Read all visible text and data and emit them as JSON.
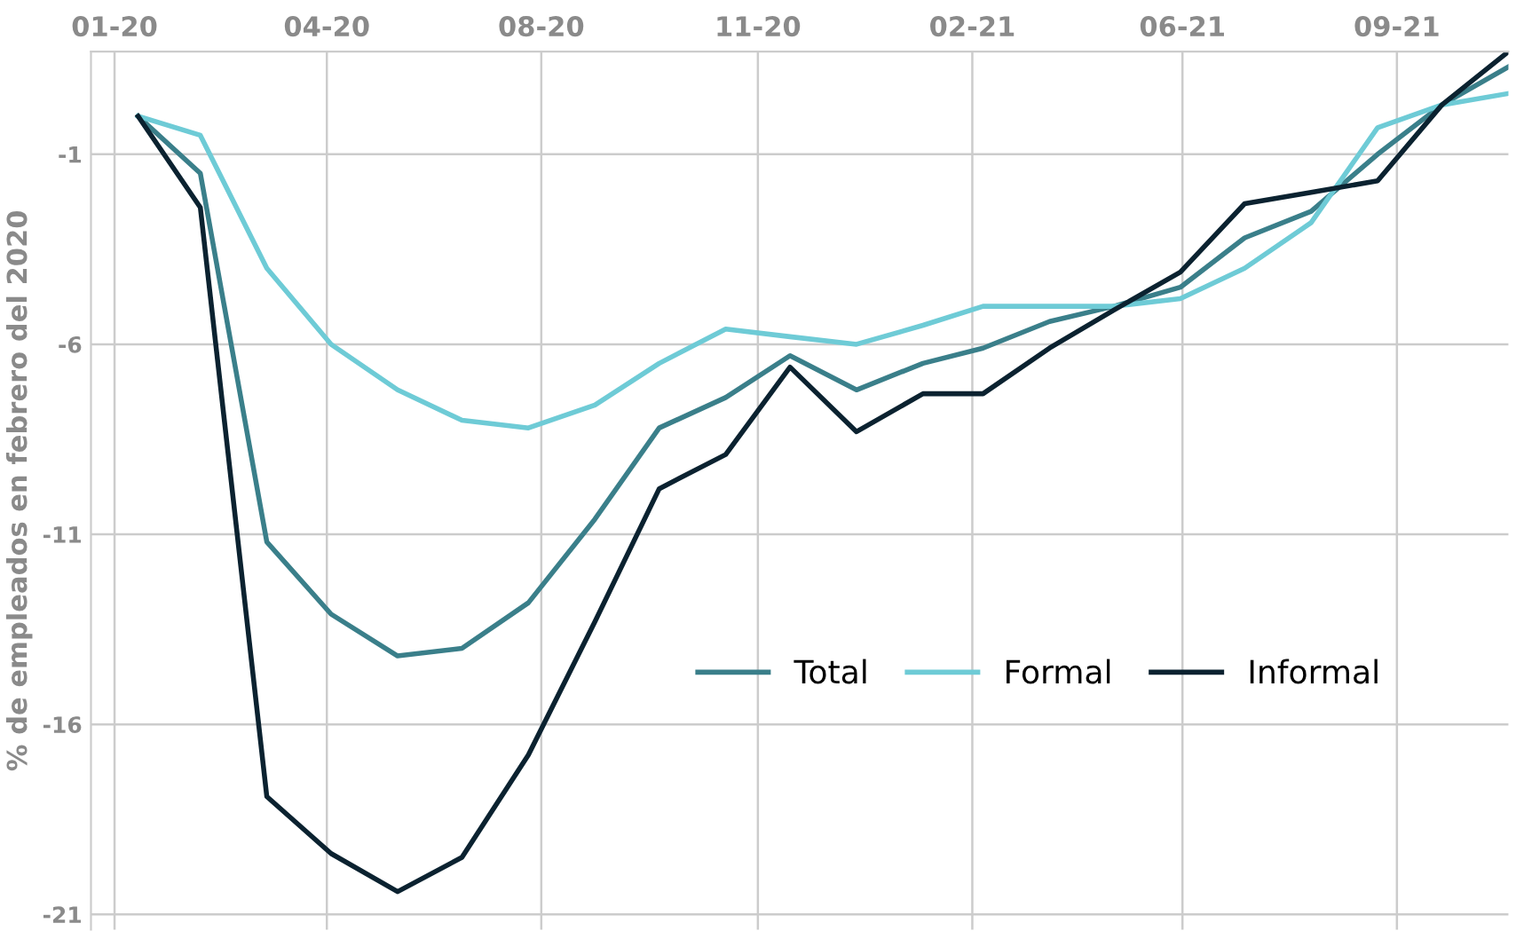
{
  "chart_data": {
    "type": "line",
    "ylabel": "% de empleados en febrero del 2020",
    "x": [
      "2020-02",
      "2020-03",
      "2020-04",
      "2020-05",
      "2020-06",
      "2020-07",
      "2020-08",
      "2020-09",
      "2020-10",
      "2020-11",
      "2020-12",
      "2021-01",
      "2021-02",
      "2021-03",
      "2021-04",
      "2021-05",
      "2021-06",
      "2021-07",
      "2021-08",
      "2021-09",
      "2021-10",
      "2021-11"
    ],
    "series": [
      {
        "name": "Total",
        "color": "#3a7f8a",
        "values": [
          0,
          -1.5,
          -11.2,
          -13.1,
          -14.2,
          -14.0,
          -12.8,
          -10.6,
          -8.2,
          -7.4,
          -6.3,
          -7.2,
          -6.5,
          -6.1,
          -5.4,
          -5.0,
          -4.5,
          -3.2,
          -2.5,
          -1.0,
          0.3,
          1.3
        ]
      },
      {
        "name": "Formal",
        "color": "#6ecbd6",
        "values": [
          0,
          -0.5,
          -4.0,
          -6.0,
          -7.2,
          -8.0,
          -8.2,
          -7.6,
          -6.5,
          -5.6,
          -5.8,
          -6.0,
          -5.5,
          -5.0,
          -5.0,
          -5.0,
          -4.8,
          -4.0,
          -2.8,
          -0.3,
          0.3,
          0.6
        ]
      },
      {
        "name": "Informal",
        "color": "#0b2230",
        "values": [
          0,
          -2.4,
          -17.9,
          -19.4,
          -20.4,
          -19.5,
          -16.8,
          -13.3,
          -9.8,
          -8.9,
          -6.6,
          -8.3,
          -7.3,
          -7.3,
          -6.1,
          -5.1,
          -4.1,
          -2.3,
          -2.0,
          -1.7,
          0.3,
          1.7
        ]
      }
    ],
    "xlim": [
      "2020-01-10",
      "2021-11-01"
    ],
    "xticks": [
      {
        "value": "2020-01-21",
        "label": "01-20"
      },
      {
        "value": "2020-04-29",
        "label": "04-20"
      },
      {
        "value": "2020-08-07",
        "label": "08-20"
      },
      {
        "value": "2020-11-16",
        "label": "11-20"
      },
      {
        "value": "2021-02-24",
        "label": "02-21"
      },
      {
        "value": "2021-06-02",
        "label": "06-21"
      },
      {
        "value": "2021-09-10",
        "label": "09-21"
      }
    ],
    "ylim": [
      -21.4,
      1.7
    ],
    "yticks": [
      {
        "value": -1,
        "label": "-1"
      },
      {
        "value": -6,
        "label": "-6"
      },
      {
        "value": -11,
        "label": "-11"
      },
      {
        "value": -16,
        "label": "-16"
      },
      {
        "value": -21,
        "label": "-21"
      }
    ],
    "grid": true,
    "legend": "lower right",
    "marker": "none",
    "line_style": "solid"
  }
}
